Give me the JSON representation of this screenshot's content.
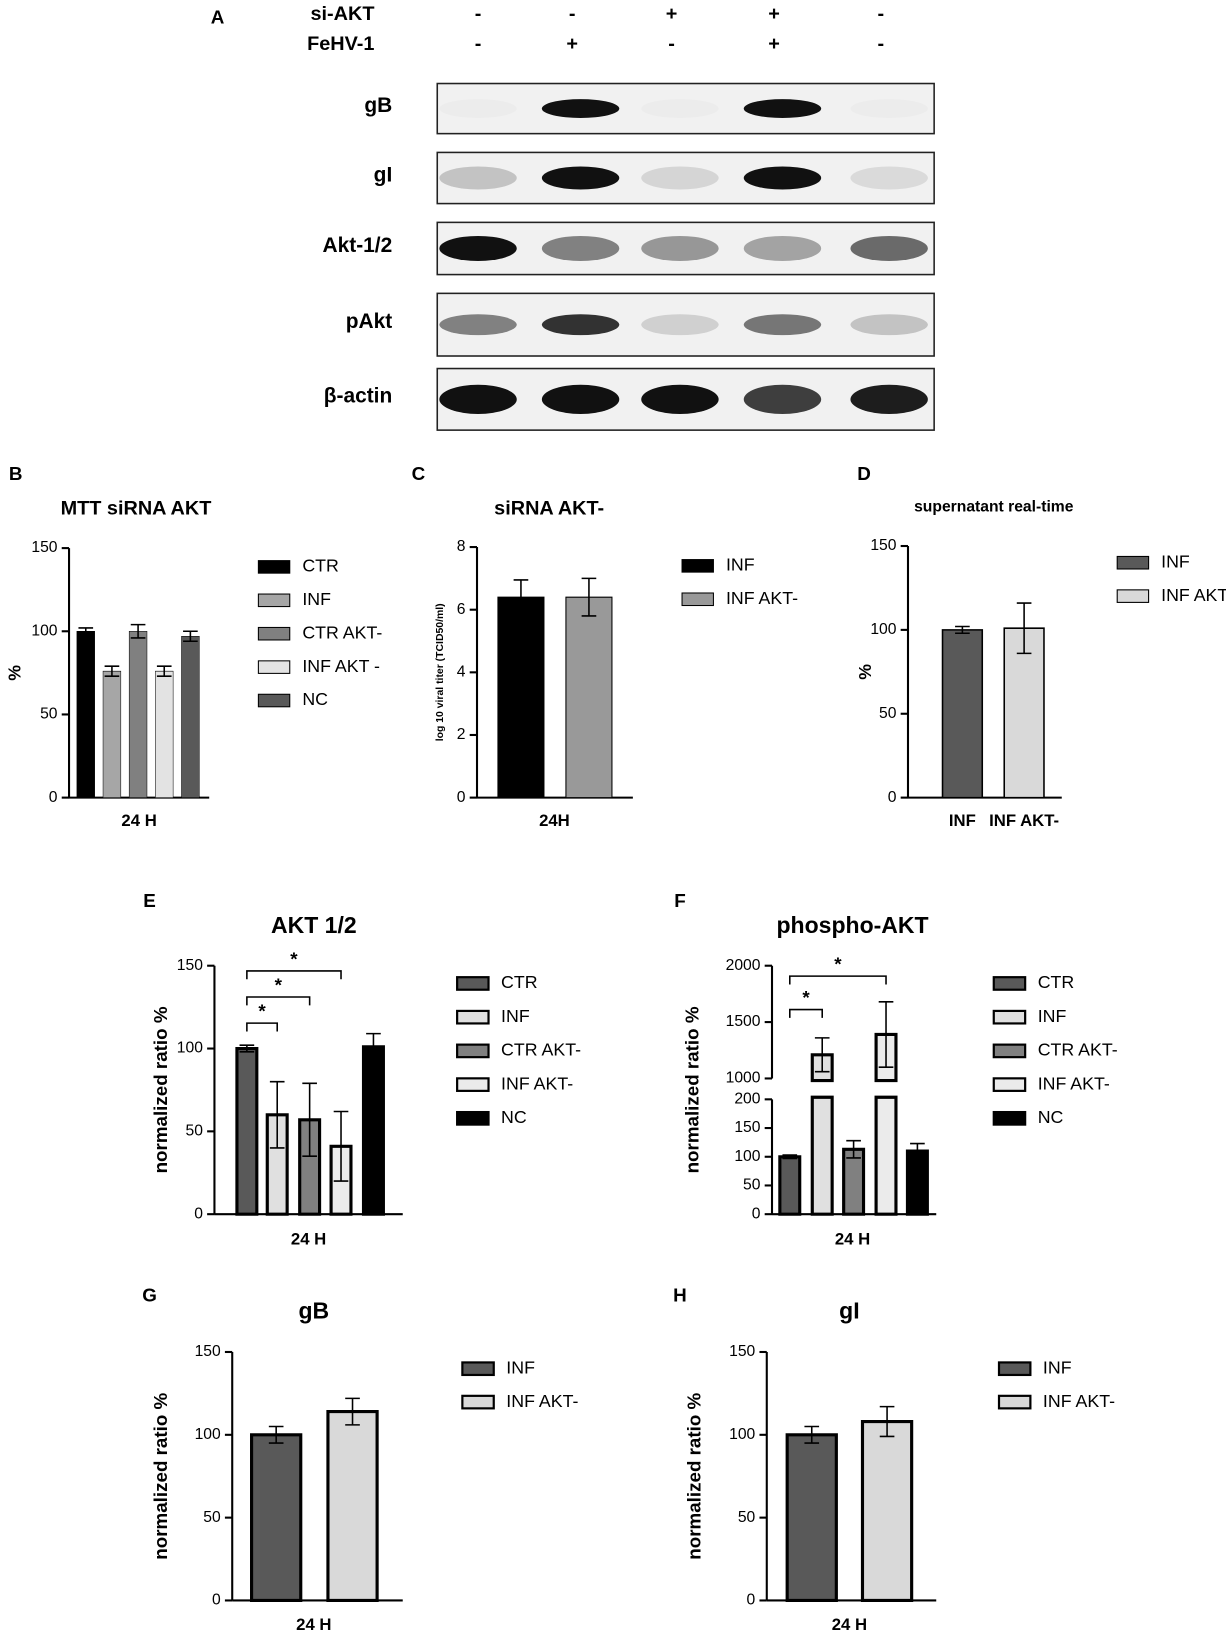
{
  "blot": {
    "panel": "A",
    "conditions": [
      {
        "label": "si-AKT",
        "values": [
          "-",
          "-",
          "+",
          "+",
          "-"
        ]
      },
      {
        "label": "FeHV-1",
        "values": [
          "-",
          "+",
          "-",
          "+",
          "-"
        ]
      }
    ],
    "bands": [
      "gB",
      "gI",
      "Akt-1/2",
      "pAkt",
      "β-actin"
    ]
  },
  "chart_data": [
    {
      "type": "bar",
      "panel": "B",
      "title": "MTT siRNA AKT",
      "ylabel": "%",
      "categories": [
        "24 H"
      ],
      "series": [
        {
          "name": "CTR",
          "color": "#000000",
          "values": [
            100
          ],
          "errors": [
            2
          ]
        },
        {
          "name": "INF",
          "color": "#a6a6a6",
          "values": [
            76
          ],
          "errors": [
            3
          ]
        },
        {
          "name": "CTR AKT-",
          "color": "#808080",
          "values": [
            100
          ],
          "errors": [
            4
          ]
        },
        {
          "name": "INF AKT -",
          "color": "#e3e3e3",
          "values": [
            76
          ],
          "errors": [
            3
          ]
        },
        {
          "name": "NC",
          "color": "#595959",
          "values": [
            97
          ],
          "errors": [
            3
          ]
        }
      ],
      "ylim": [
        0,
        150
      ],
      "yticks": [
        0,
        50,
        100,
        150
      ],
      "legend": "right"
    },
    {
      "type": "bar",
      "panel": "C",
      "title": "siRNA AKT-",
      "ylabel": "log 10 viral titer (TCID50/ml)",
      "categories": [
        "24H"
      ],
      "series": [
        {
          "name": "INF",
          "color": "#000000",
          "values": [
            6.4
          ],
          "errors": [
            0.55
          ]
        },
        {
          "name": "INF AKT-",
          "color": "#999999",
          "values": [
            6.4
          ],
          "errors": [
            0.6
          ]
        }
      ],
      "ylim": [
        0,
        8
      ],
      "yticks": [
        0,
        2,
        4,
        6,
        8
      ],
      "legend": "right"
    },
    {
      "type": "bar",
      "panel": "D",
      "title": "supernatant real-time",
      "ylabel": "%",
      "categories": [
        "INF",
        "INF AKT-"
      ],
      "values": [
        100,
        101
      ],
      "errors": [
        2,
        15
      ],
      "colors": [
        "#595959",
        "#d9d9d9"
      ],
      "ylim": [
        0,
        150
      ],
      "yticks": [
        0,
        50,
        100,
        150
      ],
      "legend": "right"
    },
    {
      "type": "bar",
      "panel": "E",
      "title": "AKT 1/2",
      "ylabel": "normalized ratio %",
      "categories": [
        "24 H"
      ],
      "series": [
        {
          "name": "CTR",
          "color": "#595959",
          "values": [
            100
          ],
          "errors": [
            2
          ]
        },
        {
          "name": "INF",
          "color": "#e0e0e0",
          "values": [
            60
          ],
          "errors": [
            20
          ]
        },
        {
          "name": "CTR AKT-",
          "color": "#808080",
          "values": [
            57
          ],
          "errors": [
            22
          ]
        },
        {
          "name": "INF AKT-",
          "color": "#ebebeb",
          "values": [
            41
          ],
          "errors": [
            21
          ]
        },
        {
          "name": "NC",
          "color": "#000000",
          "values": [
            101
          ],
          "errors": [
            8
          ]
        }
      ],
      "ylim": [
        0,
        150
      ],
      "yticks": [
        0,
        50,
        100,
        150
      ],
      "legend": "right",
      "annotations": [
        {
          "text": "*",
          "between": [
            "CTR",
            "INF"
          ]
        },
        {
          "text": "*",
          "between": [
            "CTR",
            "CTR AKT-"
          ]
        },
        {
          "text": "*",
          "between": [
            "CTR",
            "INF AKT-"
          ]
        }
      ]
    },
    {
      "type": "bar",
      "panel": "F",
      "title": "phospho-AKT",
      "ylabel": "normalized ratio %",
      "categories": [
        "24 H"
      ],
      "series": [
        {
          "name": "CTR",
          "color": "#595959",
          "values": [
            100
          ],
          "errors": [
            3
          ]
        },
        {
          "name": "INF",
          "color": "#e0e0e0",
          "values": [
            1210
          ],
          "errors": [
            150
          ]
        },
        {
          "name": "CTR AKT-",
          "color": "#808080",
          "values": [
            113
          ],
          "errors": [
            15
          ]
        },
        {
          "name": "INF AKT-",
          "color": "#ebebeb",
          "values": [
            1390
          ],
          "errors": [
            290
          ]
        },
        {
          "name": "NC",
          "color": "#000000",
          "values": [
            110
          ],
          "errors": [
            13
          ]
        }
      ],
      "ylim": [
        0,
        2000
      ],
      "ybreak": [
        200,
        1000
      ],
      "yticks": [
        0,
        50,
        100,
        150,
        200,
        1000,
        1500,
        2000
      ],
      "legend": "right",
      "annotations": [
        {
          "text": "*",
          "between": [
            "CTR",
            "INF"
          ]
        },
        {
          "text": "*",
          "between": [
            "CTR",
            "INF AKT-"
          ]
        }
      ]
    },
    {
      "type": "bar",
      "panel": "G",
      "title": "gB",
      "ylabel": "normalized ratio %",
      "categories": [
        "24 H"
      ],
      "series": [
        {
          "name": "INF",
          "color": "#595959",
          "values": [
            100
          ],
          "errors": [
            5
          ]
        },
        {
          "name": "INF AKT-",
          "color": "#d9d9d9",
          "values": [
            114
          ],
          "errors": [
            8
          ]
        }
      ],
      "ylim": [
        0,
        150
      ],
      "yticks": [
        0,
        50,
        100,
        150
      ],
      "legend": "right"
    },
    {
      "type": "bar",
      "panel": "H",
      "title": "gI",
      "ylabel": "normalized ratio %",
      "categories": [
        "24 H"
      ],
      "series": [
        {
          "name": "INF",
          "color": "#595959",
          "values": [
            100
          ],
          "errors": [
            5
          ]
        },
        {
          "name": "INF AKT-",
          "color": "#d9d9d9",
          "values": [
            108
          ],
          "errors": [
            9
          ]
        }
      ],
      "ylim": [
        0,
        150
      ],
      "yticks": [
        0,
        50,
        100,
        150
      ],
      "legend": "right"
    }
  ]
}
